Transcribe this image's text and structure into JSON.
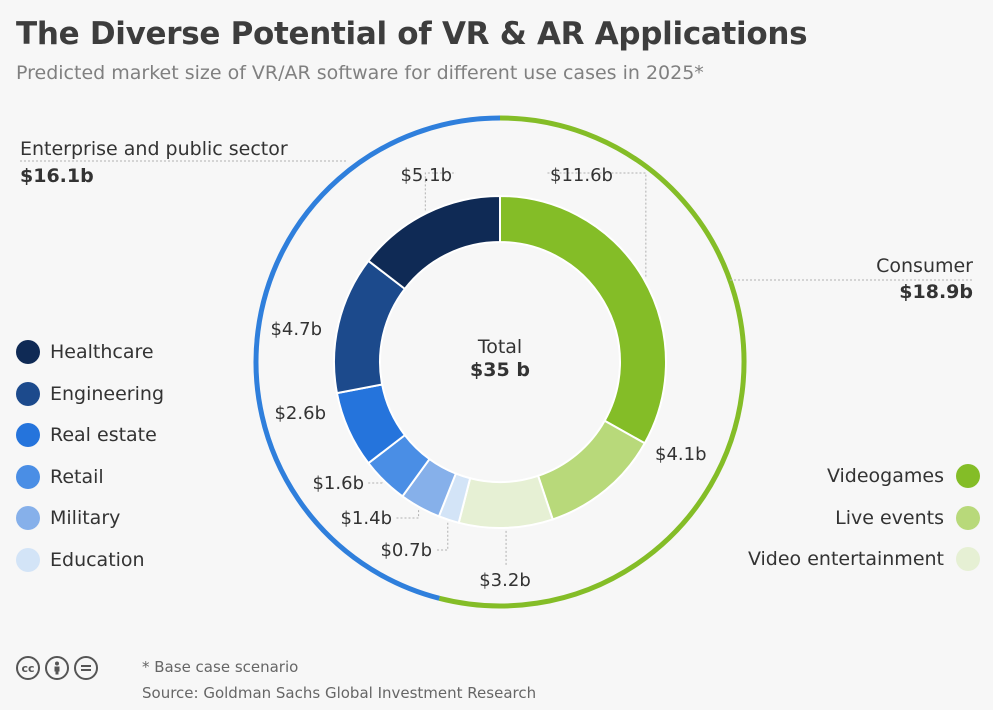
{
  "title": "The Diverse Potential of VR & AR Applications",
  "subtitle": "Predicted market size of VR/AR software for different use cases in 2025*",
  "chart_data": {
    "type": "pie",
    "title": "The Diverse Potential of VR & AR Applications",
    "subtitle": "Predicted market size of VR/AR software for different use cases in 2025*",
    "center_label": "Total",
    "center_value": "$35 b",
    "groups": [
      {
        "name": "Consumer",
        "value_label": "$18.9b",
        "value": 18.9,
        "color": "#84bd27"
      },
      {
        "name": "Enterprise and public sector",
        "value_label": "$16.1b",
        "value": 16.1,
        "color": "#2f7fdc"
      }
    ],
    "slices": [
      {
        "name": "Videogames",
        "value": 11.6,
        "label": "$11.6b",
        "group": "Consumer",
        "color": "#84bd27"
      },
      {
        "name": "Live events",
        "value": 4.1,
        "label": "$4.1b",
        "group": "Consumer",
        "color": "#b8d97a"
      },
      {
        "name": "Video entertainment",
        "value": 3.2,
        "label": "$3.2b",
        "group": "Consumer",
        "color": "#e6f0d4"
      },
      {
        "name": "Education",
        "value": 0.7,
        "label": "$0.7b",
        "group": "Enterprise and public sector",
        "color": "#d3e4f7"
      },
      {
        "name": "Military",
        "value": 1.4,
        "label": "$1.4b",
        "group": "Enterprise and public sector",
        "color": "#86b0ea"
      },
      {
        "name": "Retail",
        "value": 1.6,
        "label": "$1.6b",
        "group": "Enterprise and public sector",
        "color": "#4a8ee5"
      },
      {
        "name": "Real estate",
        "value": 2.6,
        "label": "$2.6b",
        "group": "Enterprise and public sector",
        "color": "#2574dc"
      },
      {
        "name": "Engineering",
        "value": 4.7,
        "label": "$4.7b",
        "group": "Enterprise and public sector",
        "color": "#1c4a8c"
      },
      {
        "name": "Healthcare",
        "value": 5.1,
        "label": "$5.1b",
        "group": "Enterprise and public sector",
        "color": "#0f2a55"
      }
    ],
    "legend_left": [
      "Healthcare",
      "Engineering",
      "Real estate",
      "Retail",
      "Military",
      "Education"
    ],
    "legend_right": [
      "Videogames",
      "Live events",
      "Video entertainment"
    ]
  },
  "footer": {
    "note": "* Base case scenario",
    "source": "Source: Goldman Sachs Global Investment Research",
    "icons": [
      "cc-icon",
      "by-icon",
      "nd-icon"
    ]
  }
}
